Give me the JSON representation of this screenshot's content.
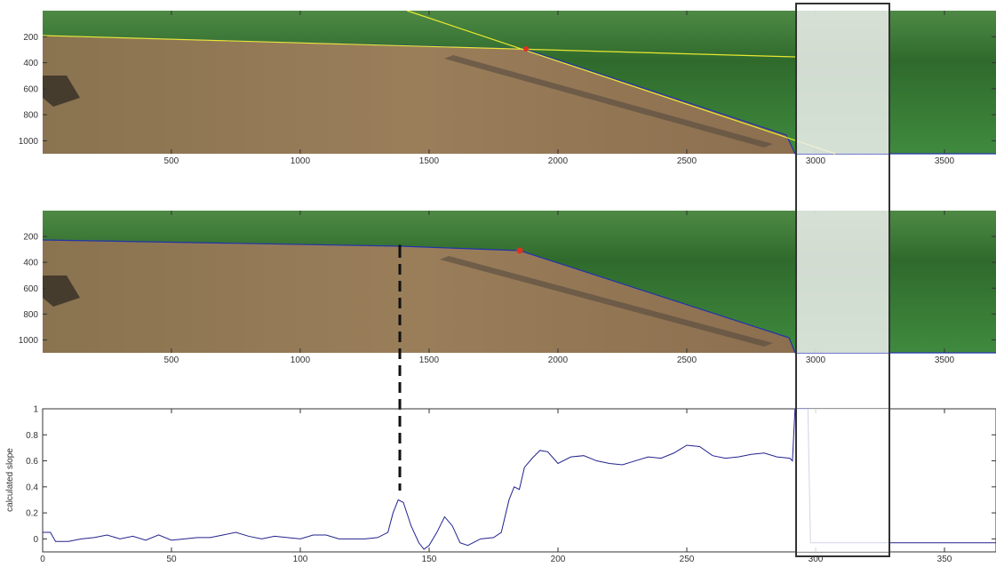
{
  "chart_data": [
    {
      "type": "image",
      "xlim": [
        0.5,
        3700
      ],
      "ylim": [
        1100,
        0
      ],
      "xticks": [
        500,
        1000,
        1500,
        2000,
        2500,
        3000,
        3500
      ],
      "yticks": [
        200,
        400,
        600,
        800,
        1000
      ]
    },
    {
      "type": "image",
      "xlim": [
        0.5,
        3700
      ],
      "ylim": [
        1100,
        0
      ],
      "xticks": [
        500,
        1000,
        1500,
        2000,
        2500,
        3000,
        3500
      ],
      "yticks": [
        200,
        400,
        600,
        800,
        1000
      ]
    },
    {
      "type": "line",
      "ylabel": "calculated slope",
      "xlim": [
        0,
        370
      ],
      "ylim": [
        -0.1,
        1
      ],
      "xticks": [
        0,
        50,
        100,
        150,
        200,
        250,
        300,
        350
      ],
      "yticks": [
        0,
        0.2,
        0.4,
        0.6,
        0.8,
        1
      ],
      "x": [
        0,
        3,
        5,
        10,
        15,
        20,
        25,
        30,
        35,
        40,
        45,
        50,
        55,
        60,
        65,
        70,
        75,
        80,
        85,
        90,
        95,
        100,
        105,
        110,
        115,
        120,
        125,
        130,
        134,
        136,
        138,
        140,
        143,
        146,
        148,
        150,
        153,
        156,
        159,
        162,
        165,
        170,
        175,
        178,
        181,
        183,
        185,
        187,
        190,
        193,
        196,
        200,
        205,
        210,
        215,
        220,
        225,
        230,
        235,
        240,
        245,
        250,
        255,
        260,
        265,
        270,
        275,
        280,
        285,
        290,
        291,
        292,
        297,
        298,
        370
      ],
      "series": [
        {
          "color": "#22228f",
          "values": [
            0.05,
            0.05,
            -0.02,
            -0.02,
            0.0,
            0.01,
            0.03,
            0.0,
            0.02,
            -0.01,
            0.03,
            -0.01,
            0.0,
            0.01,
            0.01,
            0.03,
            0.05,
            0.02,
            0.0,
            0.02,
            0.01,
            0.0,
            0.03,
            0.03,
            0.0,
            0.0,
            0.0,
            0.01,
            0.05,
            0.2,
            0.3,
            0.28,
            0.1,
            -0.03,
            -0.08,
            -0.05,
            0.05,
            0.17,
            0.1,
            -0.03,
            -0.05,
            0.0,
            0.01,
            0.05,
            0.3,
            0.4,
            0.38,
            0.55,
            0.62,
            0.68,
            0.67,
            0.58,
            0.63,
            0.64,
            0.6,
            0.58,
            0.57,
            0.6,
            0.63,
            0.62,
            0.66,
            0.72,
            0.71,
            0.64,
            0.62,
            0.63,
            0.65,
            0.66,
            0.63,
            0.62,
            0.6,
            1.0,
            1.0,
            -0.03,
            -0.03
          ]
        }
      ]
    }
  ]
}
